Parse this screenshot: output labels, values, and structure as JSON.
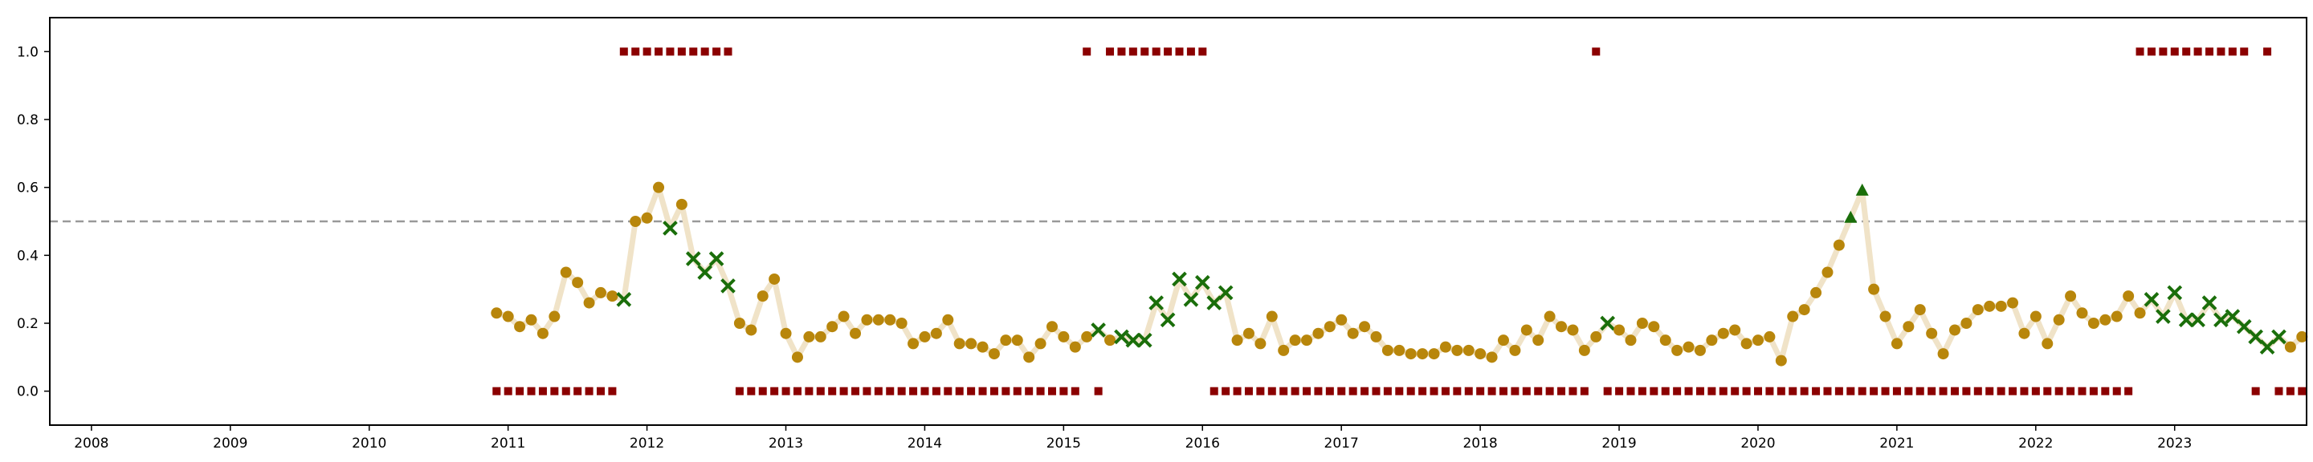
{
  "chart_data": {
    "type": "scatter",
    "title": "",
    "xlabel": "",
    "ylabel": "",
    "xlim": [
      2007.7,
      2023.95
    ],
    "ylim": [
      -0.1,
      1.1
    ],
    "x_ticks": [
      2008,
      2009,
      2010,
      2011,
      2012,
      2013,
      2014,
      2015,
      2016,
      2017,
      2018,
      2019,
      2020,
      2021,
      2022,
      2023
    ],
    "x_tick_labels": [
      "2008",
      "2009",
      "2010",
      "2011",
      "2012",
      "2013",
      "2014",
      "2015",
      "2016",
      "2017",
      "2018",
      "2019",
      "2020",
      "2021",
      "2022",
      "2023"
    ],
    "y_ticks": [
      0.0,
      0.2,
      0.4,
      0.6,
      0.8,
      1.0
    ],
    "y_tick_labels": [
      "0.0",
      "0.2",
      "0.4",
      "0.6",
      "0.8",
      "1.0"
    ],
    "grid": false,
    "threshold": 0.5,
    "colors": {
      "line": "#f0e3c8",
      "point": "#b8860b",
      "marked": "#1a6e0a",
      "flag": "#8b0000",
      "threshold": "#999999"
    },
    "series": [
      {
        "start": 2010.917,
        "step": 0.0833333,
        "values": [
          0.23,
          0.22,
          0.19,
          0.21,
          0.17,
          0.22,
          0.35,
          0.32,
          0.26,
          0.29,
          0.28,
          0.27,
          0.5,
          0.51,
          0.6,
          0.48,
          0.55,
          0.39,
          0.35,
          0.39,
          0.31,
          0.2,
          0.18,
          0.28,
          0.33,
          0.17,
          0.1,
          0.16,
          0.16,
          0.19,
          0.22,
          0.17,
          0.21,
          0.21,
          0.21,
          0.2,
          0.14,
          0.16,
          0.17,
          0.21,
          0.14,
          0.14,
          0.13,
          0.11,
          0.15,
          0.15,
          0.1,
          0.14,
          0.19,
          0.16,
          0.13,
          0.16,
          0.18,
          0.15,
          0.16,
          0.15,
          0.15,
          0.26,
          0.21,
          0.33,
          0.27,
          0.32,
          0.26,
          0.29,
          0.15,
          0.17,
          0.14,
          0.22,
          0.12,
          0.15,
          0.15,
          0.17,
          0.19,
          0.21,
          0.17,
          0.19,
          0.16,
          0.12,
          0.12,
          0.11,
          0.11,
          0.11,
          0.13,
          0.12,
          0.12,
          0.11,
          0.1,
          0.15,
          0.12,
          0.18,
          0.15,
          0.22,
          0.19,
          0.18,
          0.12,
          0.16,
          0.2,
          0.18,
          0.15,
          0.2,
          0.19,
          0.15,
          0.12,
          0.13,
          0.12,
          0.15,
          0.17,
          0.18,
          0.14,
          0.15,
          0.16,
          0.09,
          0.22,
          0.24,
          0.29,
          0.35,
          0.43,
          0.51,
          0.59,
          0.3,
          0.22,
          0.14,
          0.19,
          0.24,
          0.17,
          0.11,
          0.18,
          0.2,
          0.24,
          0.25,
          0.25,
          0.26,
          0.17,
          0.22,
          0.14,
          0.21,
          0.28,
          0.23,
          0.2,
          0.21,
          0.22,
          0.28,
          0.23,
          0.27,
          0.22,
          0.29,
          0.21,
          0.21,
          0.26,
          0.21,
          0.22,
          0.19,
          0.16,
          0.13,
          0.16,
          0.13,
          0.16
        ],
        "marker_type": [
          "o",
          "o",
          "o",
          "o",
          "o",
          "o",
          "o",
          "o",
          "o",
          "o",
          "o",
          "x",
          "o",
          "o",
          "o",
          "x",
          "o",
          "x",
          "x",
          "x",
          "x",
          "o",
          "o",
          "o",
          "o",
          "o",
          "o",
          "o",
          "o",
          "o",
          "o",
          "o",
          "o",
          "o",
          "o",
          "o",
          "o",
          "o",
          "o",
          "o",
          "o",
          "o",
          "o",
          "o",
          "o",
          "o",
          "o",
          "o",
          "o",
          "o",
          "o",
          "o",
          "x",
          "o",
          "x",
          "x",
          "x",
          "x",
          "x",
          "x",
          "x",
          "x",
          "x",
          "x",
          "o",
          "o",
          "o",
          "o",
          "o",
          "o",
          "o",
          "o",
          "o",
          "o",
          "o",
          "o",
          "o",
          "o",
          "o",
          "o",
          "o",
          "o",
          "o",
          "o",
          "o",
          "o",
          "o",
          "o",
          "o",
          "o",
          "o",
          "o",
          "o",
          "o",
          "o",
          "o",
          "x",
          "o",
          "o",
          "o",
          "o",
          "o",
          "o",
          "o",
          "o",
          "o",
          "o",
          "o",
          "o",
          "o",
          "o",
          "o",
          "o",
          "o",
          "o",
          "o",
          "o",
          "^",
          "^",
          "o",
          "o",
          "o",
          "o",
          "o",
          "o",
          "o",
          "o",
          "o",
          "o",
          "o",
          "o",
          "o",
          "o",
          "o",
          "o",
          "o",
          "o",
          "o",
          "o",
          "o",
          "o",
          "o",
          "o",
          "x",
          "x",
          "x",
          "x",
          "x",
          "x",
          "x",
          "x",
          "x",
          "x",
          "x",
          "x",
          "o",
          "o"
        ],
        "flags": [
          0,
          0,
          0,
          0,
          0,
          0,
          0,
          0,
          0,
          0,
          0,
          1,
          1,
          1,
          1,
          1,
          1,
          1,
          1,
          1,
          1,
          0,
          0,
          0,
          0,
          0,
          0,
          0,
          0,
          0,
          0,
          0,
          0,
          0,
          0,
          0,
          0,
          0,
          0,
          0,
          0,
          0,
          0,
          0,
          0,
          0,
          0,
          0,
          0,
          0,
          0,
          1,
          0,
          1,
          1,
          1,
          1,
          1,
          1,
          1,
          1,
          1,
          0,
          0,
          0,
          0,
          0,
          0,
          0,
          0,
          0,
          0,
          0,
          0,
          0,
          0,
          0,
          0,
          0,
          0,
          0,
          0,
          0,
          0,
          0,
          0,
          0,
          0,
          0,
          0,
          0,
          0,
          0,
          0,
          0,
          1,
          0,
          0,
          0,
          0,
          0,
          0,
          0,
          0,
          0,
          0,
          0,
          0,
          0,
          0,
          0,
          0,
          0,
          0,
          0,
          0,
          0,
          0,
          0,
          0,
          0,
          0,
          0,
          0,
          0,
          0,
          0,
          0,
          0,
          0,
          0,
          0,
          0,
          0,
          0,
          0,
          0,
          0,
          0,
          0,
          0,
          0,
          1,
          1,
          1,
          1,
          1,
          1,
          1,
          1,
          1,
          1,
          0,
          1,
          0,
          0,
          0
        ]
      }
    ]
  }
}
